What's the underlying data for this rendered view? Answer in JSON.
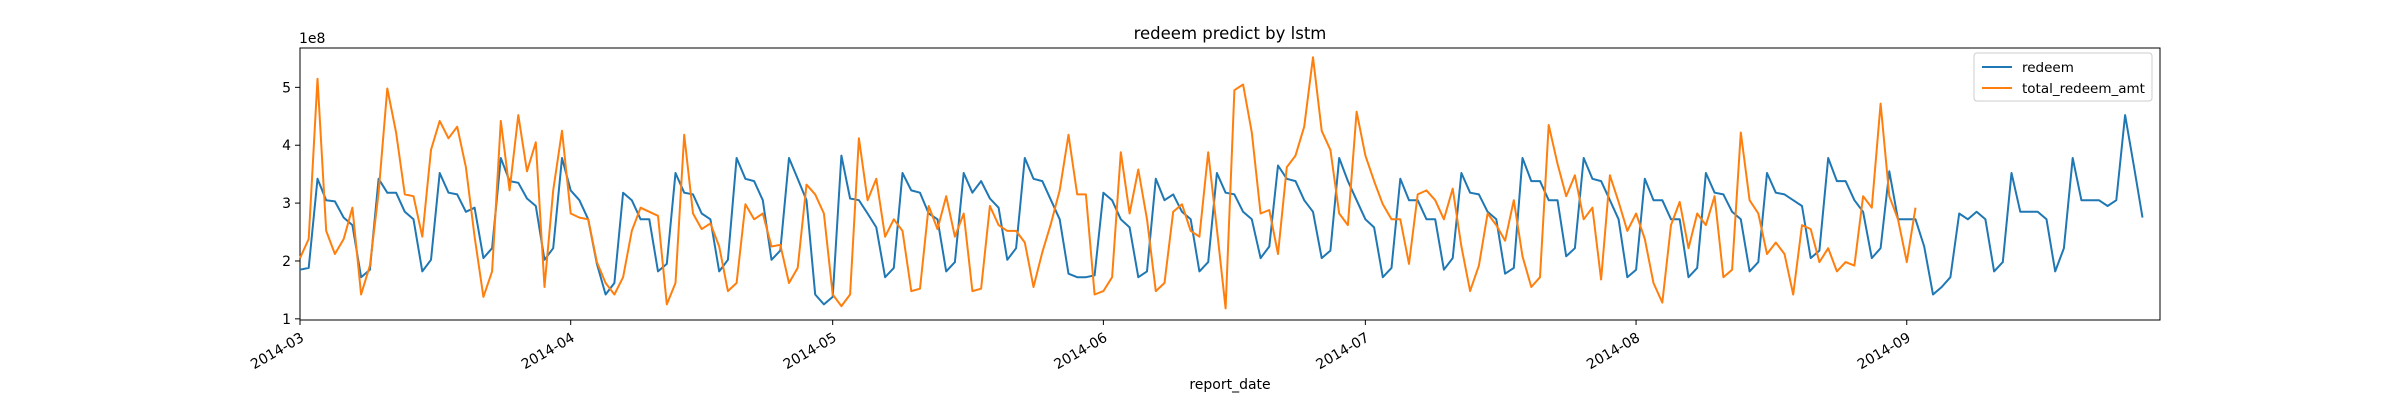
{
  "chart_data": {
    "type": "line",
    "title": "redeem predict by lstm",
    "xlabel": "report_date",
    "ylabel": "",
    "y_offset_text": "1e8",
    "y_multiplier": 100000000,
    "x_range": [
      "2014-03-01",
      "2014-09-30"
    ],
    "ylim": [
      0.98,
      5.68
    ],
    "yticks": [
      1,
      2,
      3,
      4,
      5
    ],
    "xticks": [
      "2014-03",
      "2014-04",
      "2014-05",
      "2014-06",
      "2014-07",
      "2014-08",
      "2014-09"
    ],
    "xtick_dates": [
      "2014-03-01",
      "2014-04-01",
      "2014-05-01",
      "2014-06-01",
      "2014-07-01",
      "2014-08-01",
      "2014-09-01"
    ],
    "grid": false,
    "legend_position": "top-right",
    "series": [
      {
        "name": "redeem",
        "color": "#1f77b4",
        "start_date": "2014-03-01",
        "values": [
          1.85,
          1.88,
          3.42,
          3.05,
          3.03,
          2.75,
          2.62,
          1.72,
          1.85,
          3.42,
          3.18,
          3.18,
          2.85,
          2.72,
          1.82,
          2.02,
          3.52,
          3.18,
          3.15,
          2.85,
          2.92,
          2.05,
          2.22,
          3.78,
          3.38,
          3.35,
          3.08,
          2.95,
          2.02,
          2.22,
          3.78,
          3.22,
          3.05,
          2.72,
          1.95,
          1.42,
          1.62,
          3.18,
          3.05,
          2.72,
          2.72,
          1.82,
          1.95,
          3.52,
          3.18,
          3.15,
          2.82,
          2.72,
          1.82,
          2.02,
          3.78,
          3.42,
          3.38,
          3.05,
          2.02,
          2.18,
          3.78,
          3.42,
          3.05,
          1.42,
          1.25,
          1.38,
          3.82,
          3.08,
          3.05,
          2.82,
          2.58,
          1.72,
          1.88,
          3.52,
          3.22,
          3.18,
          2.82,
          2.72,
          1.82,
          1.98,
          3.52,
          3.18,
          3.38,
          3.08,
          2.92,
          2.02,
          2.22,
          3.78,
          3.42,
          3.38,
          3.05,
          2.72,
          1.78,
          1.72,
          1.72,
          1.75,
          3.18,
          3.05,
          2.72,
          2.58,
          1.72,
          1.82,
          3.42,
          3.05,
          3.15,
          2.85,
          2.72,
          1.82,
          1.98,
          3.52,
          3.18,
          3.15,
          2.85,
          2.72,
          2.05,
          2.25,
          3.65,
          3.42,
          3.38,
          3.05,
          2.85,
          2.05,
          2.18,
          3.78,
          3.38,
          3.05,
          2.72,
          2.58,
          1.72,
          1.88,
          3.42,
          3.05,
          3.05,
          2.72,
          2.72,
          1.85,
          2.05,
          3.52,
          3.18,
          3.15,
          2.85,
          2.72,
          1.78,
          1.88,
          3.78,
          3.38,
          3.38,
          3.05,
          3.05,
          2.08,
          2.22,
          3.78,
          3.42,
          3.38,
          3.05,
          2.72,
          1.72,
          1.85,
          3.42,
          3.05,
          3.05,
          2.72,
          2.72,
          1.72,
          1.88,
          3.52,
          3.18,
          3.15,
          2.85,
          2.72,
          1.82,
          1.98,
          3.52,
          3.18,
          3.15,
          3.05,
          2.95,
          2.05,
          2.18,
          3.78,
          3.38,
          3.38,
          3.05,
          2.85,
          2.05,
          2.22,
          3.55,
          2.72,
          2.72,
          2.72,
          2.25,
          1.42,
          1.55,
          1.72,
          2.82,
          2.72,
          2.85,
          2.72,
          1.82,
          1.98,
          3.52,
          2.85,
          2.85,
          2.85,
          2.72,
          1.82,
          2.22,
          3.78,
          3.05,
          3.05,
          3.05,
          2.95,
          3.05,
          4.52,
          3.65,
          2.75
        ]
      },
      {
        "name": "total_redeem_amt",
        "color": "#ff7f0e",
        "start_date": "2014-03-01",
        "values": [
          2.05,
          2.38,
          5.15,
          2.52,
          2.12,
          2.38,
          2.92,
          1.42,
          1.92,
          3.18,
          4.98,
          4.22,
          3.15,
          3.12,
          2.42,
          3.92,
          4.42,
          4.12,
          4.32,
          3.62,
          2.42,
          1.38,
          1.82,
          4.42,
          3.22,
          4.52,
          3.55,
          4.05,
          1.55,
          3.22,
          4.25,
          2.82,
          2.75,
          2.72,
          1.98,
          1.62,
          1.42,
          1.72,
          2.52,
          2.92,
          2.85,
          2.78,
          1.25,
          1.62,
          4.18,
          2.82,
          2.55,
          2.65,
          2.25,
          1.48,
          1.62,
          2.98,
          2.72,
          2.82,
          2.25,
          2.28,
          1.62,
          1.88,
          3.32,
          3.15,
          2.82,
          1.42,
          1.22,
          1.42,
          4.12,
          3.05,
          3.42,
          2.42,
          2.72,
          2.52,
          1.48,
          1.52,
          2.95,
          2.55,
          3.12,
          2.42,
          2.82,
          1.48,
          1.52,
          2.95,
          2.62,
          2.52,
          2.52,
          2.32,
          1.55,
          2.15,
          2.65,
          3.22,
          4.18,
          3.15,
          3.15,
          1.42,
          1.48,
          1.72,
          3.88,
          2.82,
          3.58,
          2.72,
          1.48,
          1.62,
          2.85,
          2.98,
          2.52,
          2.42,
          3.88,
          2.55,
          1.18,
          4.95,
          5.05,
          4.22,
          2.82,
          2.88,
          2.12,
          3.62,
          3.82,
          4.32,
          5.52,
          4.25,
          3.92,
          2.82,
          2.62,
          4.58,
          3.82,
          3.38,
          2.98,
          2.72,
          2.72,
          1.95,
          3.15,
          3.22,
          3.05,
          2.72,
          3.25,
          2.25,
          1.48,
          1.92,
          2.82,
          2.62,
          2.35,
          3.05,
          2.08,
          1.55,
          1.72,
          4.35,
          3.68,
          3.12,
          3.48,
          2.72,
          2.92,
          1.68,
          3.48,
          3.02,
          2.52,
          2.82,
          2.38,
          1.62,
          1.28,
          2.62,
          3.02,
          2.22,
          2.82,
          2.62,
          3.12,
          1.72,
          1.85,
          4.22,
          3.05,
          2.82,
          2.12,
          2.32,
          2.12,
          1.42,
          2.62,
          2.55,
          1.98,
          2.22,
          1.82,
          1.98,
          1.92,
          3.12,
          2.92,
          4.72,
          3.12,
          2.72,
          1.98,
          2.92
        ]
      }
    ]
  }
}
